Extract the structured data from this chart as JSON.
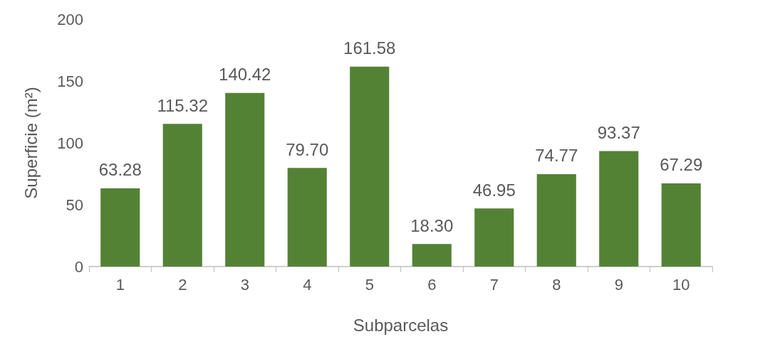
{
  "chart_data": {
    "type": "bar",
    "xlabel": "Subparcelas",
    "ylabel": "Superficie (m²)",
    "categories": [
      "1",
      "2",
      "3",
      "4",
      "5",
      "6",
      "7",
      "8",
      "9",
      "10"
    ],
    "values": [
      63.28,
      115.32,
      140.42,
      79.7,
      161.58,
      18.3,
      46.95,
      74.77,
      93.37,
      67.29
    ],
    "value_labels": [
      "63.28",
      "115.32",
      "140.42",
      "79.70",
      "161.58",
      "18.30",
      "46.95",
      "74.77",
      "93.37",
      "67.29"
    ],
    "color": "#548235",
    "ylim": [
      0,
      200
    ],
    "yticks": [
      0,
      50,
      100,
      150,
      200
    ],
    "grid": false
  }
}
